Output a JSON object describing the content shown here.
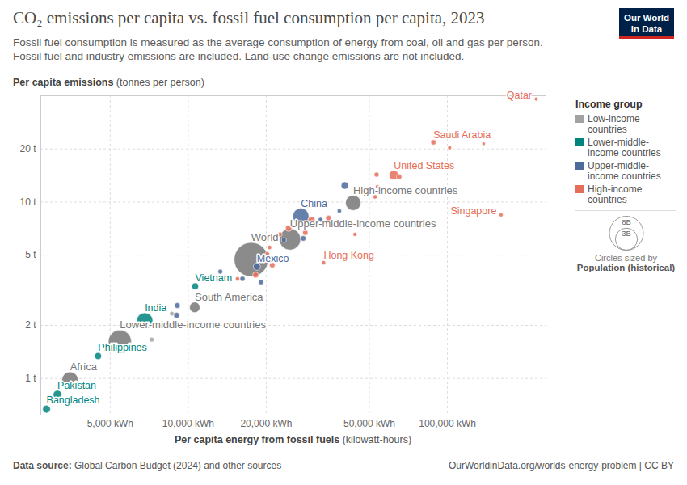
{
  "chart_data": {
    "type": "scatter",
    "title": "CO₂ emissions per capita vs. fossil fuel consumption per capita, 2023",
    "subtitle": [
      "Fossil fuel consumption is measured as the average consumption of energy from coal, oil and gas per person.",
      "Fossil fuel and industry emissions are included. Land-use change emissions are not included."
    ],
    "ylabel": "Per capita emissions",
    "ylabel_unit": "(tonnes per person)",
    "xlabel": "Per capita energy from fossil fuels",
    "xlabel_unit": "(kilowatt-hours)",
    "log": true,
    "grid": true,
    "legend": "right",
    "legend_title": "Income group",
    "xlim": [
      2700,
      240000
    ],
    "xticks": [
      {
        "value": 5000,
        "label": "5,000 kWh"
      },
      {
        "value": 10000,
        "label": "10,000 kWh"
      },
      {
        "value": 20000,
        "label": "20,000 kWh"
      },
      {
        "value": 50000,
        "label": "50,000 kWh"
      },
      {
        "value": 100000,
        "label": "100,000 kWh"
      }
    ],
    "ylim": [
      0.62,
      40
    ],
    "yticks": [
      {
        "value": 1,
        "label": "1 t"
      },
      {
        "value": 2,
        "label": "2 t"
      },
      {
        "value": 5,
        "label": "5 t"
      },
      {
        "value": 10,
        "label": "10 t"
      },
      {
        "value": 20,
        "label": "20 t"
      }
    ],
    "series": [
      {
        "name": "Low-income countries",
        "color": "#a2a2a2",
        "values": [
          {
            "x": 7230,
            "y": 1.66,
            "population": 20000000
          },
          {
            "x": 8650,
            "y": 2.33,
            "population": 15000000
          }
        ]
      },
      {
        "name": "Lower-middle-income countries",
        "color": "#00847e",
        "values": [
          {
            "x": 6800,
            "y": 2.12,
            "population": 1430000000,
            "label": "India"
          },
          {
            "x": 10640,
            "y": 3.33,
            "population": 99000000,
            "label": "Vietnam"
          },
          {
            "x": 4490,
            "y": 1.34,
            "population": 117000000,
            "label": "Philippines"
          },
          {
            "x": 3130,
            "y": 0.81,
            "population": 240000000,
            "label": "Pakistan"
          },
          {
            "x": 2840,
            "y": 0.67,
            "population": 171000000,
            "label": "Bangladesh"
          }
        ]
      },
      {
        "name": "Upper-middle-income countries",
        "color": "#4c6a9c",
        "values": [
          {
            "x": 27200,
            "y": 8.3,
            "population": 1410000000,
            "label": "China"
          },
          {
            "x": 18400,
            "y": 4.3,
            "population": 128000000,
            "label": "Mexico"
          },
          {
            "x": 40200,
            "y": 12.4,
            "population": 144000000
          },
          {
            "x": 9020,
            "y": 2.28,
            "population": 60000000
          },
          {
            "x": 9080,
            "y": 2.59,
            "population": 50000000
          },
          {
            "x": 19100,
            "y": 3.51,
            "population": 30000000
          },
          {
            "x": 27800,
            "y": 6.22,
            "population": 40000000
          },
          {
            "x": 32400,
            "y": 7.93,
            "population": 20000000
          },
          {
            "x": 38300,
            "y": 8.9,
            "population": 10000000
          },
          {
            "x": 13300,
            "y": 4.03,
            "population": 20000000
          },
          {
            "x": 16200,
            "y": 3.67,
            "population": 30000000
          },
          {
            "x": 23400,
            "y": 6.09,
            "population": 25000000
          }
        ]
      },
      {
        "name": "High-income countries",
        "color": "#e56e5a",
        "values": [
          {
            "x": 220000,
            "y": 38.3,
            "population": 2700000,
            "label": "Qatar"
          },
          {
            "x": 88300,
            "y": 21.8,
            "population": 33000000,
            "label": "Saudi Arabia"
          },
          {
            "x": 102000,
            "y": 20.3,
            "population": 4300000
          },
          {
            "x": 138000,
            "y": 21.4,
            "population": 450000
          },
          {
            "x": 161000,
            "y": 8.45,
            "population": 5900000,
            "label": "Singapore"
          },
          {
            "x": 62100,
            "y": 14.2,
            "population": 335000000,
            "label": "United States"
          },
          {
            "x": 33300,
            "y": 4.53,
            "population": 7500000,
            "label": "Hong Kong"
          },
          {
            "x": 65100,
            "y": 13.9,
            "population": 39000000
          },
          {
            "x": 53300,
            "y": 14.3,
            "population": 26000000
          },
          {
            "x": 53700,
            "y": 12.2,
            "population": 5000000
          },
          {
            "x": 52600,
            "y": 10.7,
            "population": 9000000
          },
          {
            "x": 44000,
            "y": 6.56,
            "population": 5500000
          },
          {
            "x": 34800,
            "y": 8.1,
            "population": 51000000
          },
          {
            "x": 29900,
            "y": 7.9,
            "population": 124000000
          },
          {
            "x": 24400,
            "y": 7.1,
            "population": 84000000
          },
          {
            "x": 22600,
            "y": 6.56,
            "population": 18000000
          },
          {
            "x": 20600,
            "y": 5.53,
            "population": 9000000
          },
          {
            "x": 19400,
            "y": 4.77,
            "population": 68000000
          },
          {
            "x": 21100,
            "y": 4.39,
            "population": 48000000
          },
          {
            "x": 20200,
            "y": 5.09,
            "population": 10000000
          },
          {
            "x": 28300,
            "y": 6.7,
            "population": 38000000
          },
          {
            "x": 18200,
            "y": 3.86,
            "population": 59000000
          },
          {
            "x": 15500,
            "y": 3.67,
            "population": 10000000
          }
        ]
      }
    ],
    "regions": {
      "color": "#777777",
      "values": [
        {
          "x": 17500,
          "y": 4.72,
          "population": 8060000000,
          "label": "World"
        },
        {
          "x": 43300,
          "y": 9.9,
          "population": 1240000000,
          "label": "High-income countries"
        },
        {
          "x": 24700,
          "y": 6.15,
          "population": 2800000000,
          "label": "Upper-middle-income countries"
        },
        {
          "x": 5450,
          "y": 1.62,
          "population": 3300000000,
          "label": "Lower-middle-income countries"
        },
        {
          "x": 10600,
          "y": 2.53,
          "population": 440000000,
          "label": "South America"
        },
        {
          "x": 3500,
          "y": 0.98,
          "population": 1460000000,
          "label": "Africa"
        }
      ]
    },
    "size_legend": {
      "title": "Circles sized by",
      "label": "Population (historical)",
      "values": [
        {
          "value": 8000000000,
          "label": "8B"
        },
        {
          "value": 3000000000,
          "label": "3B"
        }
      ]
    },
    "source": {
      "label": "Data source:",
      "text": "Global Carbon Budget (2024) and other sources"
    },
    "url": "OurWorldinData.org/worlds-energy-problem | CC BY",
    "logo": [
      "Our World",
      "in Data"
    ]
  }
}
